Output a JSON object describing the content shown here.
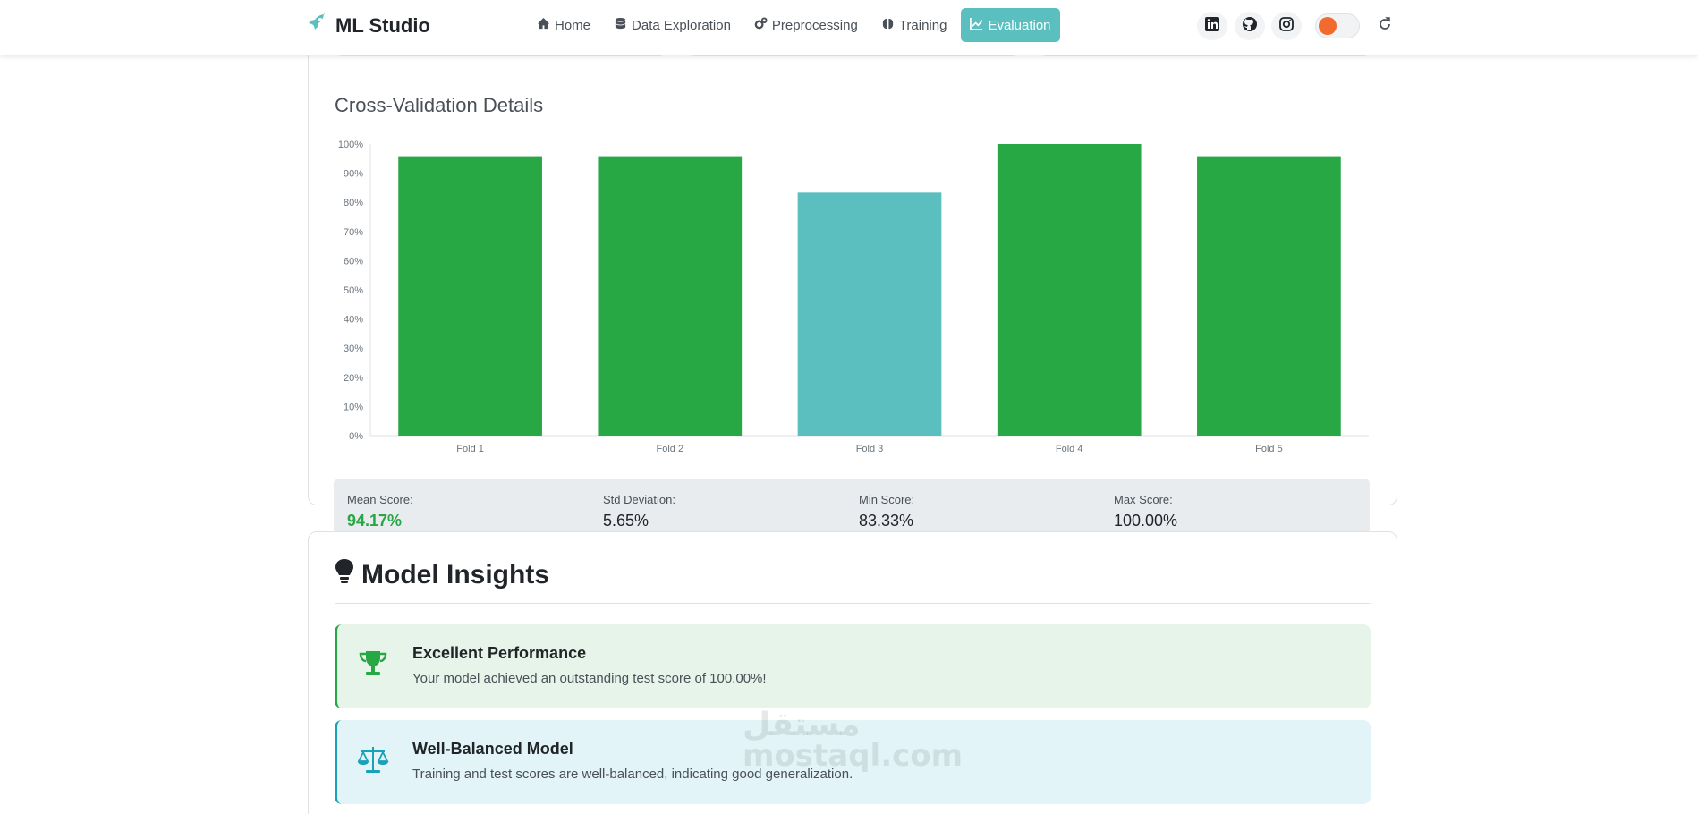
{
  "app": {
    "brand": "ML Studio"
  },
  "nav": [
    {
      "label": "Home",
      "icon": "home-icon",
      "active": false
    },
    {
      "label": "Data Exploration",
      "icon": "database-icon",
      "active": false
    },
    {
      "label": "Preprocessing",
      "icon": "gears-icon",
      "active": false
    },
    {
      "label": "Training",
      "icon": "brain-icon",
      "active": false
    },
    {
      "label": "Evaluation",
      "icon": "line-chart-icon",
      "active": true
    }
  ],
  "social": [
    "linkedin-icon",
    "github-icon",
    "instagram-icon"
  ],
  "colors": {
    "accent": "#5bbfbf",
    "success": "#28a745",
    "info": "#17a2b8",
    "toggle": "#f26a2e"
  },
  "cv": {
    "title": "Cross-Validation Details",
    "stats": [
      {
        "label": "Mean Score:",
        "value": "94.17%"
      },
      {
        "label": "Std Deviation:",
        "value": "5.65%"
      },
      {
        "label": "Min Score:",
        "value": "83.33%"
      },
      {
        "label": "Max Score:",
        "value": "100.00%"
      }
    ]
  },
  "chart_data": {
    "type": "bar",
    "categories": [
      "Fold 1",
      "Fold 2",
      "Fold 3",
      "Fold 4",
      "Fold 5"
    ],
    "values": [
      95.83,
      95.83,
      83.33,
      100.0,
      95.83
    ],
    "bar_colors": [
      "#28a745",
      "#28a745",
      "#5bbfbf",
      "#28a745",
      "#28a745"
    ],
    "ylim": [
      0,
      100
    ],
    "yticks": [
      "0%",
      "10%",
      "20%",
      "30%",
      "40%",
      "50%",
      "60%",
      "70%",
      "80%",
      "90%",
      "100%"
    ],
    "grid": false,
    "title": "",
    "xlabel": "",
    "ylabel": ""
  },
  "insights": {
    "title": "Model Insights",
    "items": [
      {
        "title": "Excellent Performance",
        "message": "Your model achieved an outstanding test score of 100.00%!"
      },
      {
        "title": "Well-Balanced Model",
        "message": "Training and test scores are well-balanced, indicating good generalization."
      }
    ]
  },
  "watermark": {
    "line1": "مستقل",
    "line2": "mostaql.com"
  }
}
